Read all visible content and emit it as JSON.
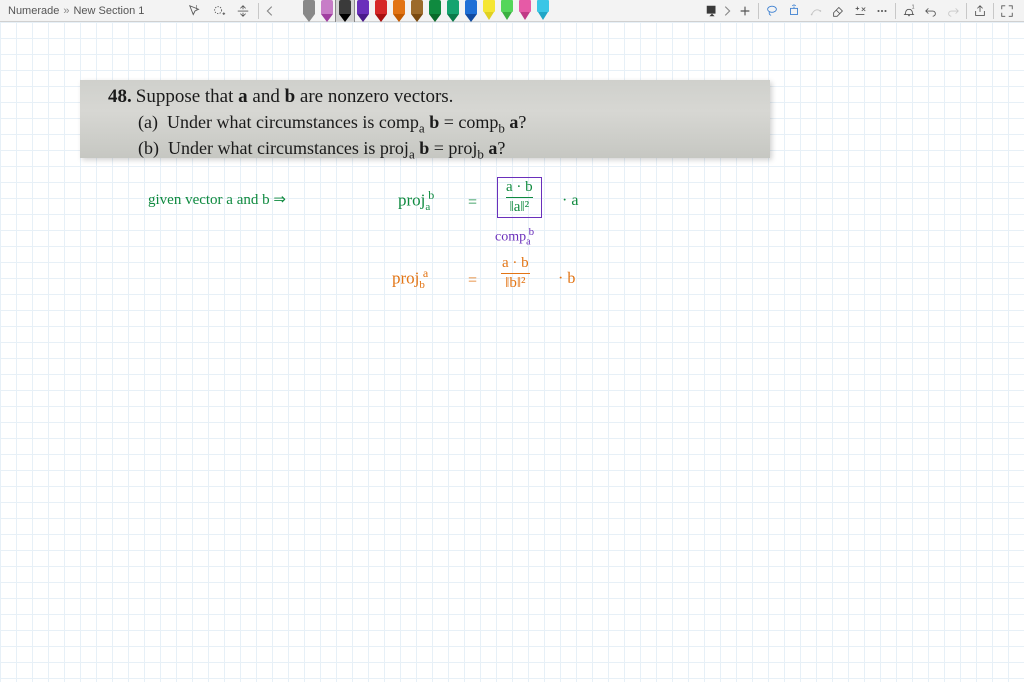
{
  "breadcrumb": {
    "root": "Numerade",
    "sep": "»",
    "section": "New Section 1"
  },
  "pens": [
    {
      "body": "#888888",
      "tip": "#888888",
      "type": "pen"
    },
    {
      "body": "#c77dc7",
      "tip": "#a040a0",
      "type": "pen"
    },
    {
      "body": "#3a3a3a",
      "tip": "#000000",
      "type": "pen",
      "selected": true
    },
    {
      "body": "#6a2fbb",
      "tip": "#4a1a8a",
      "type": "pen"
    },
    {
      "body": "#d62828",
      "tip": "#a81010",
      "type": "pen"
    },
    {
      "body": "#e27414",
      "tip": "#c25a00",
      "type": "pen"
    },
    {
      "body": "#9c6a2a",
      "tip": "#7a4a10",
      "type": "pen"
    },
    {
      "body": "#0f8a3f",
      "tip": "#0a6a2a",
      "type": "pen"
    },
    {
      "body": "#14a36f",
      "tip": "#0a7a4a",
      "type": "pen"
    },
    {
      "body": "#1e6fd6",
      "tip": "#104aa0",
      "type": "pen"
    },
    {
      "body": "#f5e633",
      "tip": "#e0d020",
      "type": "highlighter"
    },
    {
      "body": "#54d65a",
      "tip": "#3ab040",
      "type": "highlighter"
    },
    {
      "body": "#e65aa6",
      "tip": "#c03a86",
      "type": "highlighter"
    },
    {
      "body": "#3ac6e6",
      "tip": "#20a6c6",
      "type": "highlighter"
    }
  ],
  "problem": {
    "number": "48.",
    "stem": "Suppose that a and b are nonzero vectors.",
    "part_a_label": "(a)",
    "part_a": "Under what circumstances is compₐ b = comp_b a?",
    "part_b_label": "(b)",
    "part_b": "Under what circumstances is projₐ b = proj_b a?"
  },
  "handwriting": {
    "given": "given  vector  a  and  b  ⇒",
    "proj_a_b": "proj",
    "proj_a_b_sub": "a",
    "proj_a_b_sup": "b",
    "eq": "=",
    "dot": "·",
    "a": "a",
    "b": "b",
    "frac1_num": "a · b",
    "frac1_den": "‖a‖²",
    "comp_label": "comp",
    "comp_sub": "a",
    "comp_sup": "b",
    "proj_b_a": "proj",
    "proj_b_a_sub": "b",
    "proj_b_a_sup": "a",
    "frac2_num": "a · b",
    "frac2_den": "‖b‖²"
  },
  "icons": {
    "marquee": "marquee-select-icon",
    "lasso_add": "lasso-add-icon",
    "panel": "insert-space-icon",
    "chevron_left": "chevron-left-icon",
    "chevron_right": "chevron-right-icon",
    "add": "add-page-icon",
    "lasso": "lasso-icon",
    "shape": "object-rotate-icon",
    "image": "ink-to-shape-icon",
    "eraser": "eraser-icon",
    "ruler": "math-icon",
    "dots": "more-icon",
    "bell": "bell-icon",
    "undo": "undo-icon",
    "redo": "redo-icon",
    "share": "share-icon",
    "fullscreen": "fullscreen-icon",
    "pen_dropdown": "pen-dropdown-icon"
  }
}
